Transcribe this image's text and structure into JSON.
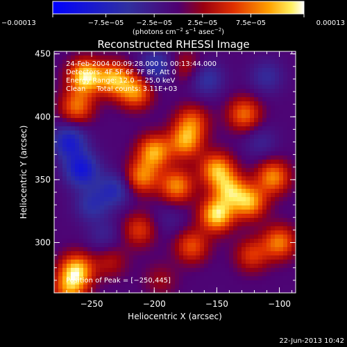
{
  "chart_data": {
    "type": "heatmap",
    "title": "Reconstructed RHESSI Image",
    "xlabel": "Heliocentric X (arcsec)",
    "ylabel": "Heliocentric Y (arcsec)",
    "xlim": [
      -280,
      -87
    ],
    "ylim": [
      260,
      452
    ],
    "x_ticks": [
      -250,
      -200,
      -150,
      -100
    ],
    "x_tick_labels": [
      "−250",
      "−200",
      "−150",
      "−100"
    ],
    "y_ticks": [
      300,
      350,
      400,
      450
    ],
    "y_tick_labels": [
      "300",
      "350",
      "400",
      "450"
    ],
    "colorbar": {
      "range": [
        -0.00013,
        0.00013
      ],
      "ticks": [
        -0.00013,
        -7.5e-05,
        -2.5e-05,
        2.5e-05,
        7.5e-05,
        0.00013
      ],
      "tick_labels": [
        "−0.00013",
        "−7.5e−05",
        "−2.5e−05",
        "2.5e−05",
        "7.5e−05",
        "0.00013"
      ],
      "units_prefix": "(photons cm",
      "units_exp1": "−2",
      "units_mid": " s",
      "units_exp2": "−1",
      "units_mid2": " asec",
      "units_exp3": "−2",
      "units_suffix": ")"
    },
    "info_lines": [
      "24-Feb-2004 00:09:28.000 to 00:13:44.000",
      "Detectors: 4F 5F 6F 7F 8F, Att 0",
      "Energy Range: 12.0 − 25.0 keV",
      "Clean     Total counts: 3.11E+03"
    ],
    "peak_label": "Position of Peak = [−250,445]",
    "peak_position": [
      -250,
      445
    ],
    "sources": [
      {
        "x": -255,
        "y": 432,
        "value": 0.000125
      },
      {
        "x": -232,
        "y": 430,
        "value": 0.0001
      },
      {
        "x": -215,
        "y": 420,
        "value": 9e-05
      },
      {
        "x": -262,
        "y": 408,
        "value": 8e-05
      },
      {
        "x": -175,
        "y": 440,
        "value": 4e-05
      },
      {
        "x": -170,
        "y": 396,
        "value": 7e-05
      },
      {
        "x": -175,
        "y": 380,
        "value": 9e-05
      },
      {
        "x": -200,
        "y": 372,
        "value": 0.0001
      },
      {
        "x": -210,
        "y": 352,
        "value": 8.5e-05
      },
      {
        "x": -182,
        "y": 345,
        "value": 9e-05
      },
      {
        "x": -150,
        "y": 358,
        "value": 0.0001
      },
      {
        "x": -128,
        "y": 402,
        "value": 8e-05
      },
      {
        "x": -140,
        "y": 342,
        "value": 9e-05
      },
      {
        "x": -150,
        "y": 322,
        "value": 0.00012
      },
      {
        "x": -124,
        "y": 332,
        "value": 0.0001
      },
      {
        "x": -105,
        "y": 352,
        "value": 9e-05
      },
      {
        "x": -100,
        "y": 300,
        "value": 8.5e-05
      },
      {
        "x": -122,
        "y": 290,
        "value": 6e-05
      },
      {
        "x": -170,
        "y": 297,
        "value": 7e-05
      },
      {
        "x": -212,
        "y": 310,
        "value": 6e-05
      },
      {
        "x": -262,
        "y": 278,
        "value": 0.00011
      },
      {
        "x": -268,
        "y": 263,
        "value": 8e-05
      },
      {
        "x": -235,
        "y": 285,
        "value": 4e-05
      },
      {
        "x": -195,
        "y": 270,
        "value": 3e-05
      },
      {
        "x": -258,
        "y": 358,
        "value": -9e-05
      },
      {
        "x": -268,
        "y": 380,
        "value": -8e-05
      },
      {
        "x": -232,
        "y": 342,
        "value": -6e-05
      },
      {
        "x": -250,
        "y": 330,
        "value": -5e-05
      },
      {
        "x": -198,
        "y": 440,
        "value": -6e-05
      },
      {
        "x": -158,
        "y": 430,
        "value": -5e-05
      },
      {
        "x": -110,
        "y": 432,
        "value": -4e-05
      },
      {
        "x": -115,
        "y": 380,
        "value": -3e-05
      },
      {
        "x": -240,
        "y": 305,
        "value": -3e-05
      },
      {
        "x": -188,
        "y": 318,
        "value": -2e-05
      }
    ]
  },
  "footer": {
    "timestamp": "22-Jun-2013 10:42"
  }
}
